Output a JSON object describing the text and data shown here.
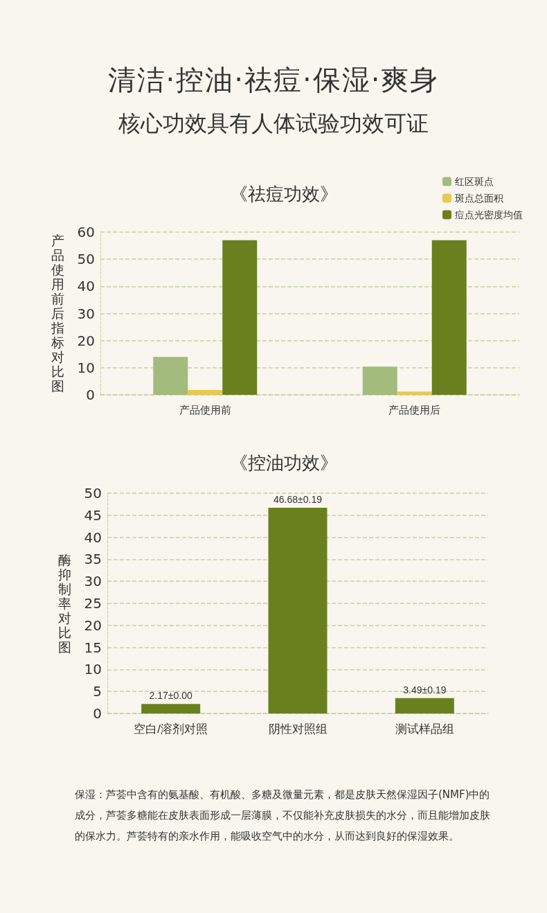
{
  "chart_data": [
    {
      "type": "bar",
      "title": "《祛痘功效》",
      "ylabel": "产品使用前后指标对比图",
      "annotations": [
        "清洁·控油·祛痘·保湿·爽身",
        "核心功效具有人体试验功效可证"
      ],
      "categories": [
        "产品使用前",
        "产品使用后"
      ],
      "series": [
        {
          "name": "红区斑点",
          "color": "#a3bb7c",
          "values": [
            14,
            10.4
          ]
        },
        {
          "name": "斑点总面积",
          "color": "#e8c850",
          "values": [
            1.8,
            1.2
          ]
        },
        {
          "name": "痘点光密度均值",
          "color": "#6a801f",
          "values": [
            57,
            57
          ]
        }
      ],
      "ylim": [
        0,
        60
      ],
      "yticks": [
        0,
        10,
        20,
        30,
        40,
        50,
        60
      ],
      "grid": "y",
      "legend": "top right"
    },
    {
      "type": "bar",
      "title": "《控油功效》",
      "ylabel": "酶抑制率对比图",
      "annotations": [
        "保湿：芦荟中含有的氨基酸、有机酸、多糖及微量元素，都是皮肤天然保湿因子(NMF)中的成分，芦荟多糖能在皮肤表面形成一层薄膜，不仅能补充皮肤损失的水分，而且能增加皮肤的保水力。芦荟特有的亲水作用，能吸收空气中的水分，从而达到良好的保湿效果。"
      ],
      "categories": [
        "空白/溶剂对照",
        "阴性对照组",
        "测试样品组"
      ],
      "values": [
        2.17,
        46.68,
        3.49
      ],
      "color": "#6a801f",
      "value_labels": [
        "2.17±0.00",
        "46.68±0.19",
        "3.49±0.19"
      ],
      "ylim": [
        0,
        50
      ],
      "yticks": [
        0,
        5,
        10,
        15,
        20,
        25,
        30,
        35,
        40,
        45,
        50
      ],
      "grid": "y"
    }
  ]
}
